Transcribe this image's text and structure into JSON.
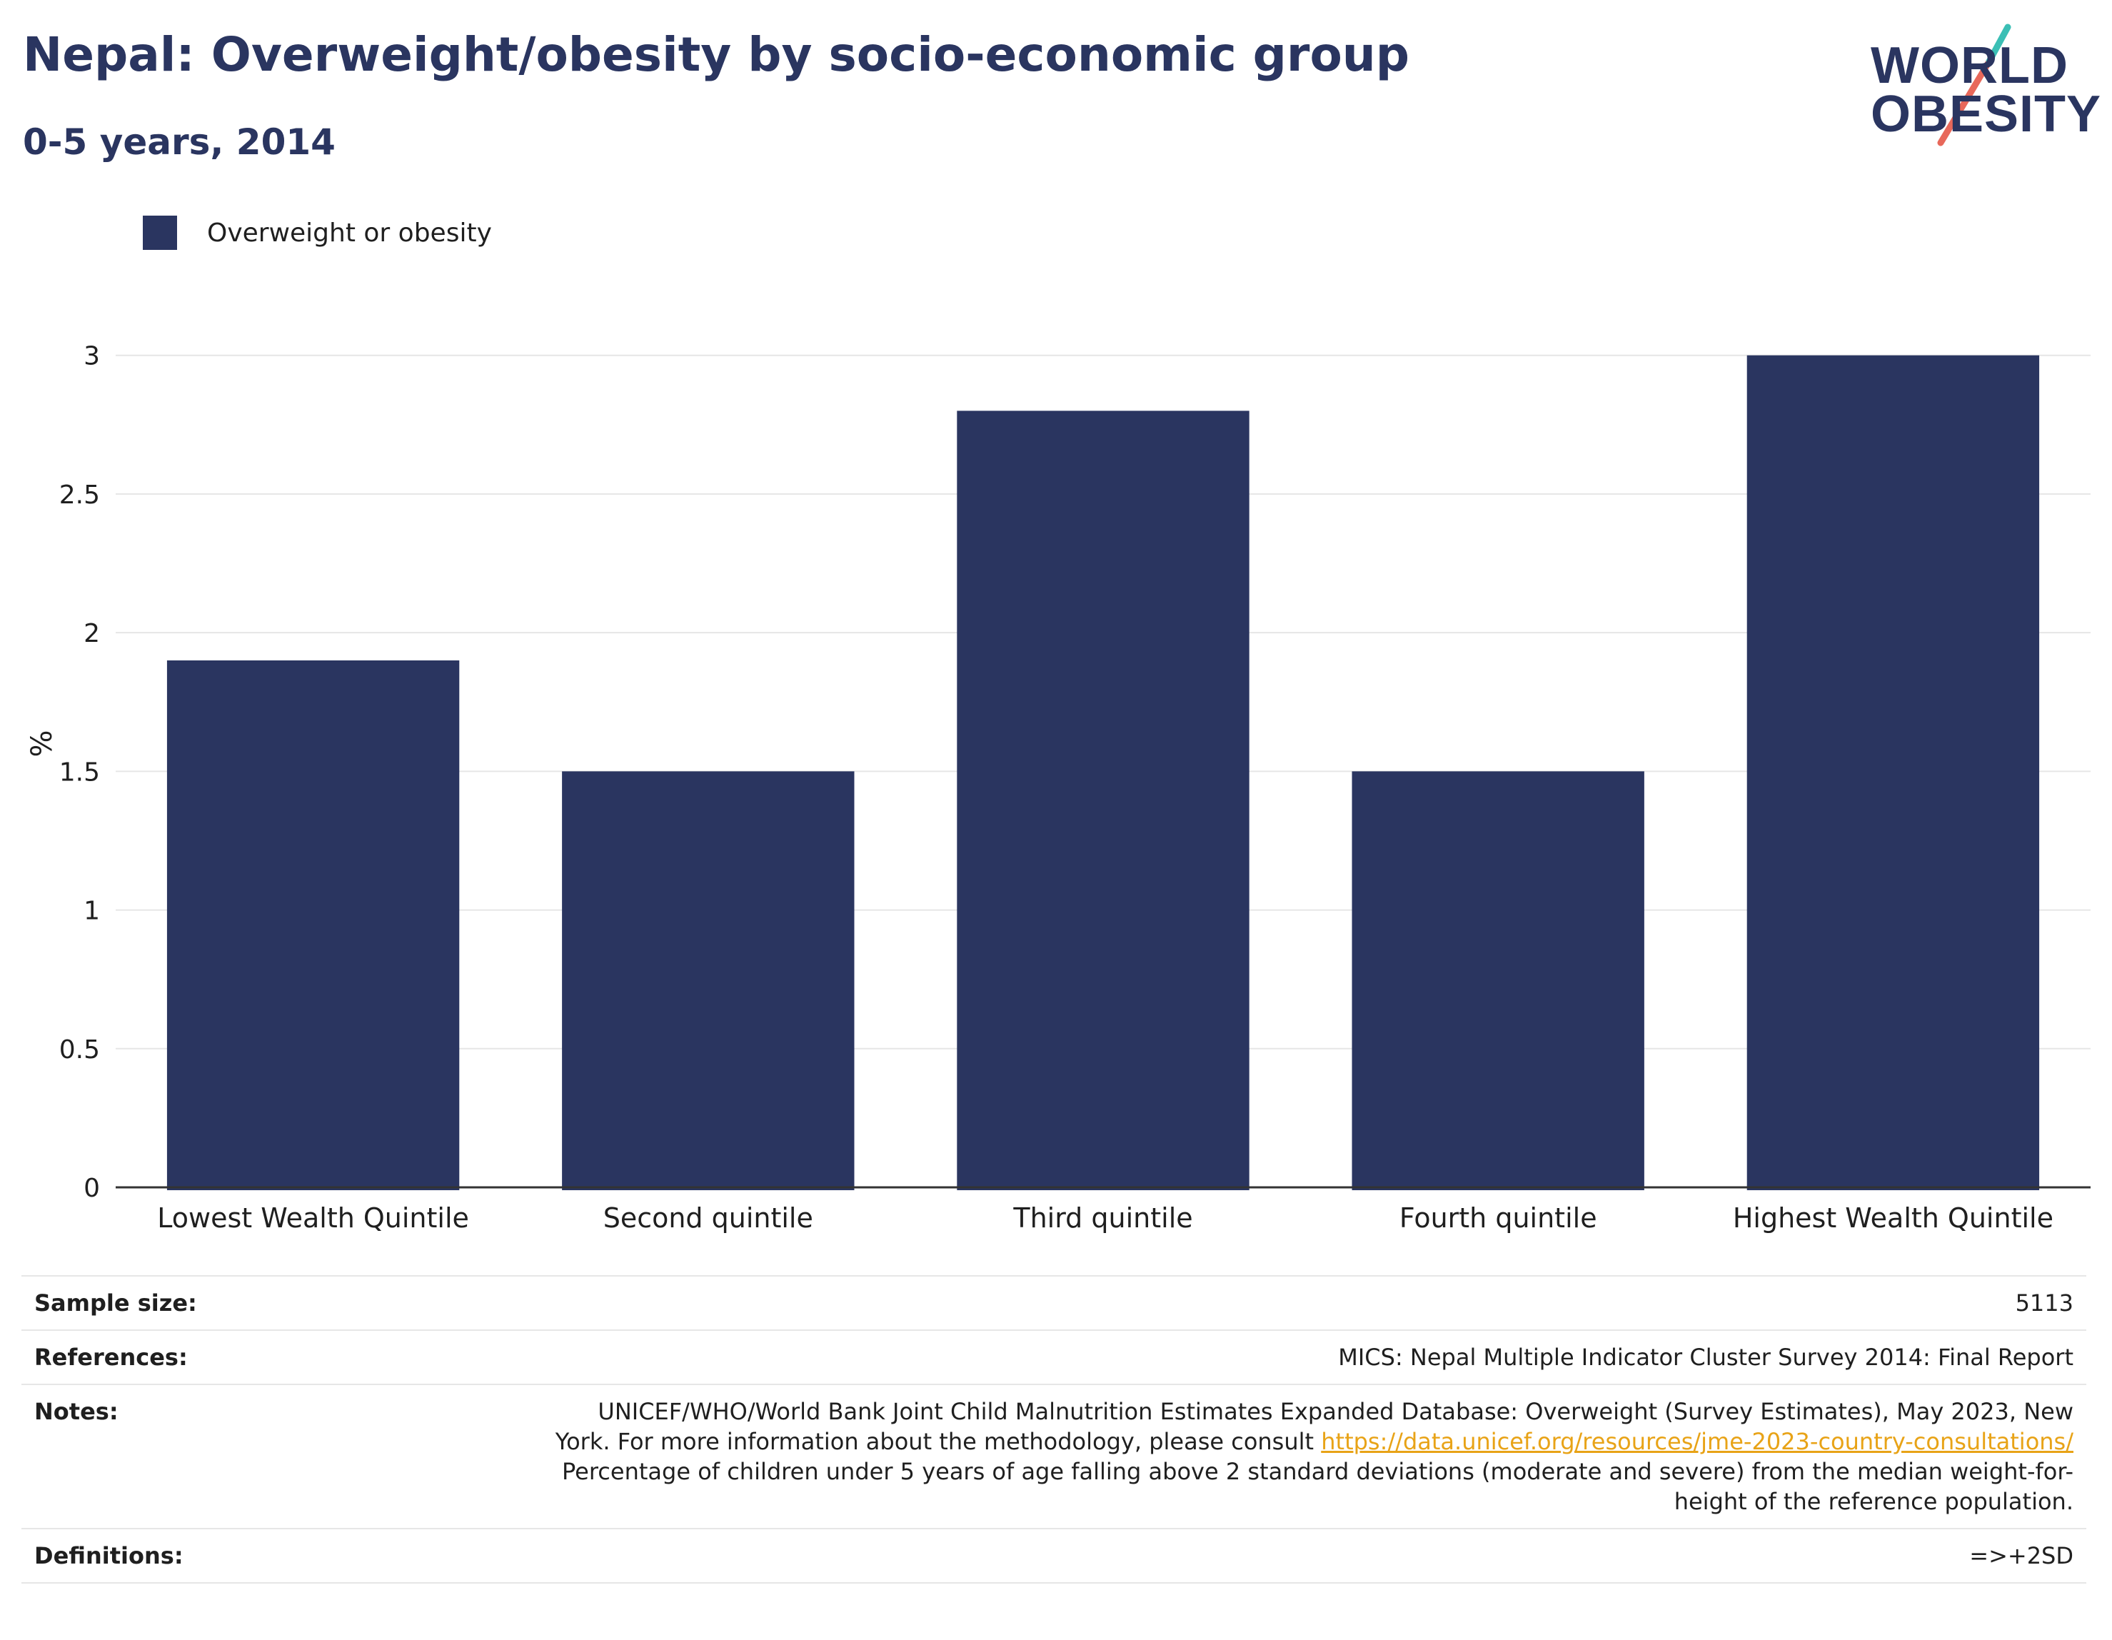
{
  "header": {
    "title": "Nepal: Overweight/obesity by socio-economic group",
    "subtitle": "0-5 years, 2014"
  },
  "logo": {
    "line1": "WORLD",
    "line2": "OBESITY",
    "slash_top_color": "#3bbfb5",
    "slash_bottom_color": "#e8685a"
  },
  "colors": {
    "bar": "#2a3560",
    "grid": "#e6e6e6",
    "axis": "#333333"
  },
  "chart_data": {
    "type": "bar",
    "categories": [
      "Lowest Wealth Quintile",
      "Second quintile",
      "Third quintile",
      "Fourth quintile",
      "Highest Wealth Quintile"
    ],
    "series": [
      {
        "name": "Overweight or obesity",
        "values": [
          1.9,
          1.5,
          2.8,
          1.5,
          3.0
        ]
      }
    ],
    "ylabel": "%",
    "ylim": [
      0,
      3.2
    ],
    "yticks": [
      0,
      0.5,
      1,
      1.5,
      2,
      2.5,
      3
    ],
    "ytick_labels": [
      "0",
      "0.5",
      "1",
      "1.5",
      "2",
      "2.5",
      "3"
    ],
    "grid": true,
    "legend_position": "top-left"
  },
  "info": {
    "sample_size_label": "Sample size:",
    "sample_size_value": "5113",
    "references_label": "References:",
    "references_value": "MICS: Nepal Multiple Indicator Cluster Survey 2014: Final Report",
    "notes_label": "Notes:",
    "notes_line1": "UNICEF/WHO/World Bank Joint Child Malnutrition Estimates Expanded Database: Overweight (Survey Estimates), May 2023, New",
    "notes_line2_prefix": "York. For more information about the methodology, please consult ",
    "notes_link": "https://data.unicef.org/resources/jme-2023-country-consultations/",
    "notes_line3": "Percentage of children under 5 years of age falling above 2 standard deviations (moderate and severe) from the median weight-for-",
    "notes_line4": "height of the reference population.",
    "definitions_label": "Definitions:",
    "definitions_value": "=>+2SD"
  }
}
